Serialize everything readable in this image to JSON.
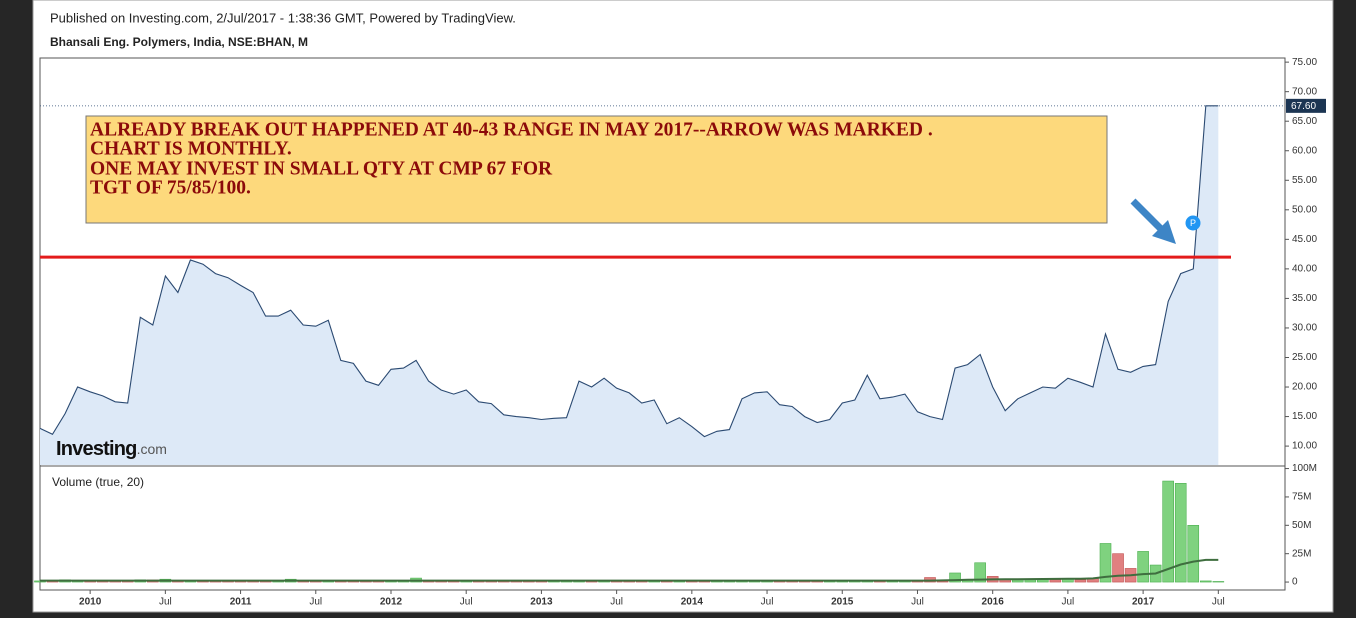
{
  "chart_data": {
    "type": "area",
    "published": "Published on Investing.com, 2/Jul/2017 - 1:38:36 GMT, Powered by TradingView.",
    "title": "Bhansali Eng. Polymers, India, NSE:BHAN, M",
    "logo": "Investing",
    "logo_suffix": ".com",
    "annotation": [
      "ALREADY BREAK OUT HAPPENED AT 40-43 RANGE IN MAY 2017--ARROW WAS MARKED .",
      "CHART IS MONTHLY.",
      "ONE MAY INVEST IN SMALL QTY AT CMP 67 FOR",
      "TGT OF 75/85/100."
    ],
    "marker_label": "P",
    "last_label": "67.60",
    "hline": {
      "value": 42,
      "color": "#e31b1b"
    },
    "x": [
      "2009-09",
      "2009-10",
      "2009-11",
      "2009-12",
      "2010-01",
      "2010-02",
      "2010-03",
      "2010-04",
      "2010-05",
      "2010-06",
      "2010-07",
      "2010-08",
      "2010-09",
      "2010-10",
      "2010-11",
      "2010-12",
      "2011-01",
      "2011-02",
      "2011-03",
      "2011-04",
      "2011-05",
      "2011-06",
      "2011-07",
      "2011-08",
      "2011-09",
      "2011-10",
      "2011-11",
      "2011-12",
      "2012-01",
      "2012-02",
      "2012-03",
      "2012-04",
      "2012-05",
      "2012-06",
      "2012-07",
      "2012-08",
      "2012-09",
      "2012-10",
      "2012-11",
      "2012-12",
      "2013-01",
      "2013-02",
      "2013-03",
      "2013-04",
      "2013-05",
      "2013-06",
      "2013-07",
      "2013-08",
      "2013-09",
      "2013-10",
      "2013-11",
      "2013-12",
      "2014-01",
      "2014-02",
      "2014-03",
      "2014-04",
      "2014-05",
      "2014-06",
      "2014-07",
      "2014-08",
      "2014-09",
      "2014-10",
      "2014-11",
      "2014-12",
      "2015-01",
      "2015-02",
      "2015-03",
      "2015-04",
      "2015-05",
      "2015-06",
      "2015-07",
      "2015-08",
      "2015-09",
      "2015-10",
      "2015-11",
      "2015-12",
      "2016-01",
      "2016-02",
      "2016-03",
      "2016-04",
      "2016-05",
      "2016-06",
      "2016-07",
      "2016-08",
      "2016-09",
      "2016-10",
      "2016-11",
      "2016-12",
      "2017-01",
      "2017-02",
      "2017-03",
      "2017-04",
      "2017-05",
      "2017-06",
      "2017-07"
    ],
    "xlim": [
      "2009-09",
      "2017-12"
    ],
    "xticks": [
      {
        "value": "2010-01",
        "label": "2010"
      },
      {
        "value": "2010-07",
        "label": "Jul"
      },
      {
        "value": "2011-01",
        "label": "2011"
      },
      {
        "value": "2011-07",
        "label": "Jul"
      },
      {
        "value": "2012-01",
        "label": "2012"
      },
      {
        "value": "2012-07",
        "label": "Jul"
      },
      {
        "value": "2013-01",
        "label": "2013"
      },
      {
        "value": "2013-07",
        "label": "Jul"
      },
      {
        "value": "2014-01",
        "label": "2014"
      },
      {
        "value": "2014-07",
        "label": "Jul"
      },
      {
        "value": "2015-01",
        "label": "2015"
      },
      {
        "value": "2015-07",
        "label": "Jul"
      },
      {
        "value": "2016-01",
        "label": "2016"
      },
      {
        "value": "2016-07",
        "label": "Jul"
      },
      {
        "value": "2017-01",
        "label": "2017"
      },
      {
        "value": "2017-07",
        "label": "Jul"
      }
    ],
    "series": [
      {
        "color": "#2b4a72",
        "fill": "#dde9f7",
        "values": [
          13.0,
          12.0,
          15.5,
          20.0,
          19.2,
          18.5,
          17.5,
          17.3,
          31.8,
          30.5,
          38.8,
          36.0,
          41.5,
          40.8,
          39.2,
          38.5,
          37.2,
          36.0,
          32.0,
          32.0,
          33.0,
          30.5,
          30.3,
          31.3,
          24.5,
          24.0,
          21.0,
          20.3,
          23.0,
          23.2,
          24.5,
          21.0,
          19.5,
          18.8,
          19.5,
          17.5,
          17.2,
          15.3,
          15.0,
          14.8,
          14.5,
          14.7,
          14.8,
          21.0,
          20.0,
          21.5,
          19.8,
          19.0,
          17.3,
          17.8,
          13.8,
          14.8,
          13.3,
          11.6,
          12.5,
          12.8,
          18.0,
          19.0,
          19.2,
          17.0,
          16.7,
          15.0,
          14.0,
          14.5,
          17.3,
          17.8,
          22.0,
          18.0,
          18.3,
          18.8,
          15.8,
          15.0,
          14.5,
          23.2,
          23.8,
          25.5,
          20.0,
          16.0,
          18.0,
          19.0,
          20.0,
          19.8,
          21.5,
          20.8,
          20.0,
          29.0,
          23.0,
          22.5,
          23.5,
          23.8,
          34.5,
          39.2,
          40.0,
          67.6,
          67.6
        ]
      }
    ],
    "ylim": [
      6.8,
      75.7
    ],
    "yticks": [
      {
        "value": 10,
        "label": "10.00"
      },
      {
        "value": 15,
        "label": "15.00"
      },
      {
        "value": 20,
        "label": "20.00"
      },
      {
        "value": 25,
        "label": "25.00"
      },
      {
        "value": 30,
        "label": "30.00"
      },
      {
        "value": 35,
        "label": "35.00"
      },
      {
        "value": 40,
        "label": "40.00"
      },
      {
        "value": 45,
        "label": "45.00"
      },
      {
        "value": 50,
        "label": "50.00"
      },
      {
        "value": 55,
        "label": "55.00"
      },
      {
        "value": 60,
        "label": "60.00"
      },
      {
        "value": 65,
        "label": "65.00"
      },
      {
        "value": 70,
        "label": "70.00"
      },
      {
        "value": 75,
        "label": "75.00"
      }
    ],
    "volume": {
      "type": "bar",
      "title": "Volume (true, 20)",
      "up_color": "#7fd27f",
      "down_color": "#e08080",
      "ma_color": "#3f6e3f",
      "values": [
        1,
        1.5,
        2,
        1.5,
        1.2,
        1,
        1.5,
        1.3,
        2,
        1.8,
        2.5,
        1.5,
        1.2,
        1,
        1,
        1.2,
        1,
        1.3,
        1.5,
        1,
        2.5,
        1,
        1,
        1,
        1.2,
        1,
        1,
        1.2,
        1,
        1.5,
        3.5,
        1,
        1,
        1,
        1,
        1,
        1,
        1,
        1,
        1,
        1,
        1,
        1,
        1.5,
        1,
        1.2,
        1,
        1,
        1,
        1,
        1,
        1,
        1,
        1,
        1,
        1,
        1.5,
        1.2,
        1,
        1,
        1,
        1,
        1,
        1,
        1,
        1,
        1.5,
        1,
        1,
        1,
        1.5,
        4,
        1,
        8,
        2,
        17,
        5,
        2,
        2,
        2,
        2,
        2,
        2.5,
        2,
        3,
        34,
        25,
        12,
        27,
        15,
        89,
        87,
        50,
        1,
        0.5
      ],
      "ma_values": [
        1.3,
        1.3,
        1.3,
        1.3,
        1.3,
        1.3,
        1.3,
        1.3,
        1.3,
        1.3,
        1.3,
        1.3,
        1.3,
        1.3,
        1.3,
        1.3,
        1.3,
        1.3,
        1.3,
        1.3,
        1.3,
        1.3,
        1.3,
        1.3,
        1.3,
        1.3,
        1.3,
        1.3,
        1.3,
        1.3,
        1.3,
        1.3,
        1.3,
        1.3,
        1.3,
        1.3,
        1.3,
        1.3,
        1.3,
        1.3,
        1.3,
        1.3,
        1.3,
        1.3,
        1.3,
        1.3,
        1.3,
        1.3,
        1.3,
        1.3,
        1.3,
        1.3,
        1.3,
        1.3,
        1.3,
        1.3,
        1.3,
        1.3,
        1.3,
        1.3,
        1.3,
        1.3,
        1.3,
        1.3,
        1.3,
        1.3,
        1.3,
        1.3,
        1.3,
        1.3,
        1.3,
        1.3,
        1.5,
        1.7,
        2,
        2.2,
        2.3,
        2.4,
        2.5,
        2.6,
        2.7,
        2.8,
        2.9,
        3,
        3.2,
        4.5,
        5.5,
        6,
        7,
        7.5,
        11.5,
        15.5,
        18,
        19.5,
        19.5
      ],
      "ylim": [
        -7,
        100.5
      ],
      "yticks": [
        0,
        {
          "value": 25,
          "label": "25M"
        },
        {
          "value": 50,
          "label": "50M"
        },
        {
          "value": 75,
          "label": "75M"
        },
        {
          "value": 100,
          "label": "100M"
        }
      ]
    }
  }
}
